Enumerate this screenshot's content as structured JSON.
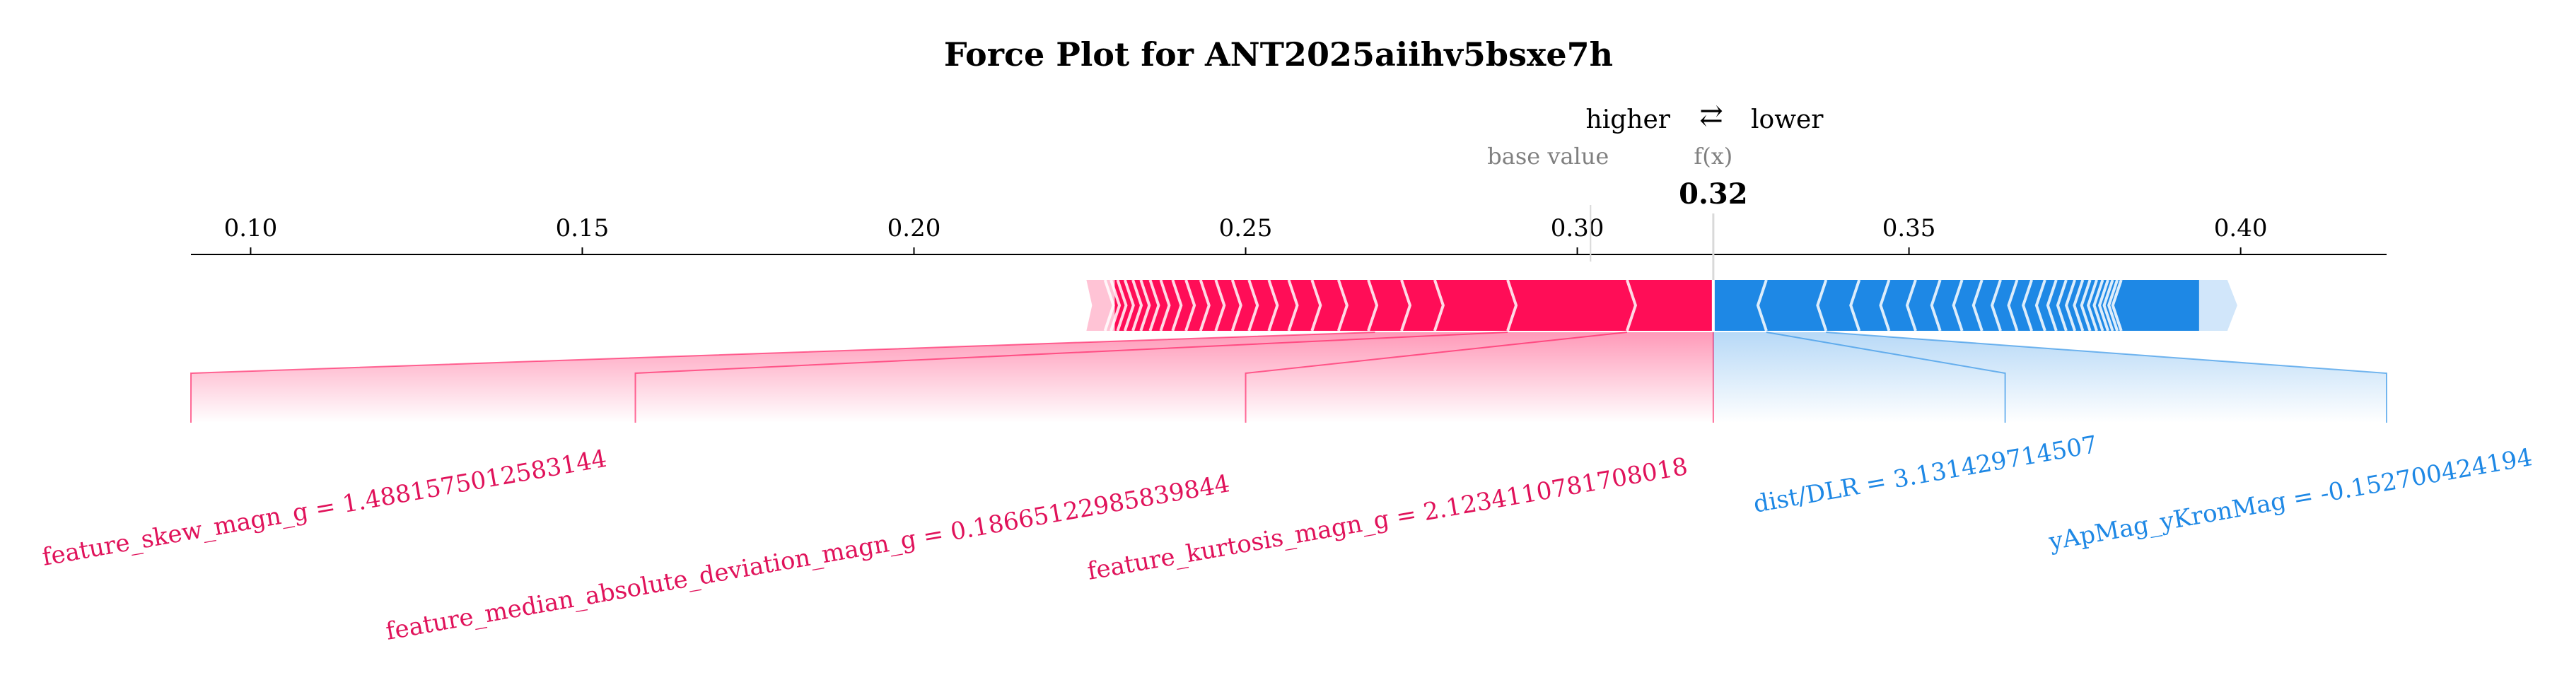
{
  "chart_data": {
    "type": "force",
    "title": "Force Plot for ANT2025aiihv5bsxe7h",
    "legend": {
      "higher": "higher",
      "lower": "lower",
      "arrow": "⇄"
    },
    "base_value_label": "base value",
    "fx_label": "f(x)",
    "fx_value_text": "0.32",
    "base_value": 0.302,
    "fx": 0.3205,
    "xlim": [
      0.091,
      0.422
    ],
    "ticks": [
      0.1,
      0.15,
      0.2,
      0.25,
      0.3,
      0.35,
      0.4
    ],
    "tick_labels": [
      "0.10",
      "0.15",
      "0.20",
      "0.25",
      "0.30",
      "0.35",
      "0.40"
    ],
    "positive_range": [
      0.226,
      0.3205
    ],
    "negative_range": [
      0.3205,
      0.398
    ],
    "positive_features": [
      {
        "label": "feature_kurtosis_magn_g = 2.1234110781708018",
        "start": 0.3075,
        "end": 0.3205
      },
      {
        "label": "feature_median_absolute_deviation_magn_g = 0.18665122985839844",
        "start": 0.2895,
        "end": 0.3075
      },
      {
        "label": "feature_skew_magn_g = 1.4881575012583144",
        "start": 0.2695,
        "end": 0.2895
      }
    ],
    "negative_features": [
      {
        "label": "dist/DLR = 3.131429714507",
        "start": 0.3205,
        "end": 0.3285
      },
      {
        "label": "yApMag_yKronMag = -0.152700424194",
        "start": 0.3285,
        "end": 0.3375
      }
    ],
    "colors": {
      "positive": "#ff0d57",
      "positive_light": "#ffc3d5",
      "negative": "#1e88e5",
      "negative_light": "#d1e6fa",
      "positive_text": "#e0125a",
      "negative_text": "#1e88e5",
      "separator": "#ffffff",
      "base_marker": "#d9d9d9"
    }
  }
}
